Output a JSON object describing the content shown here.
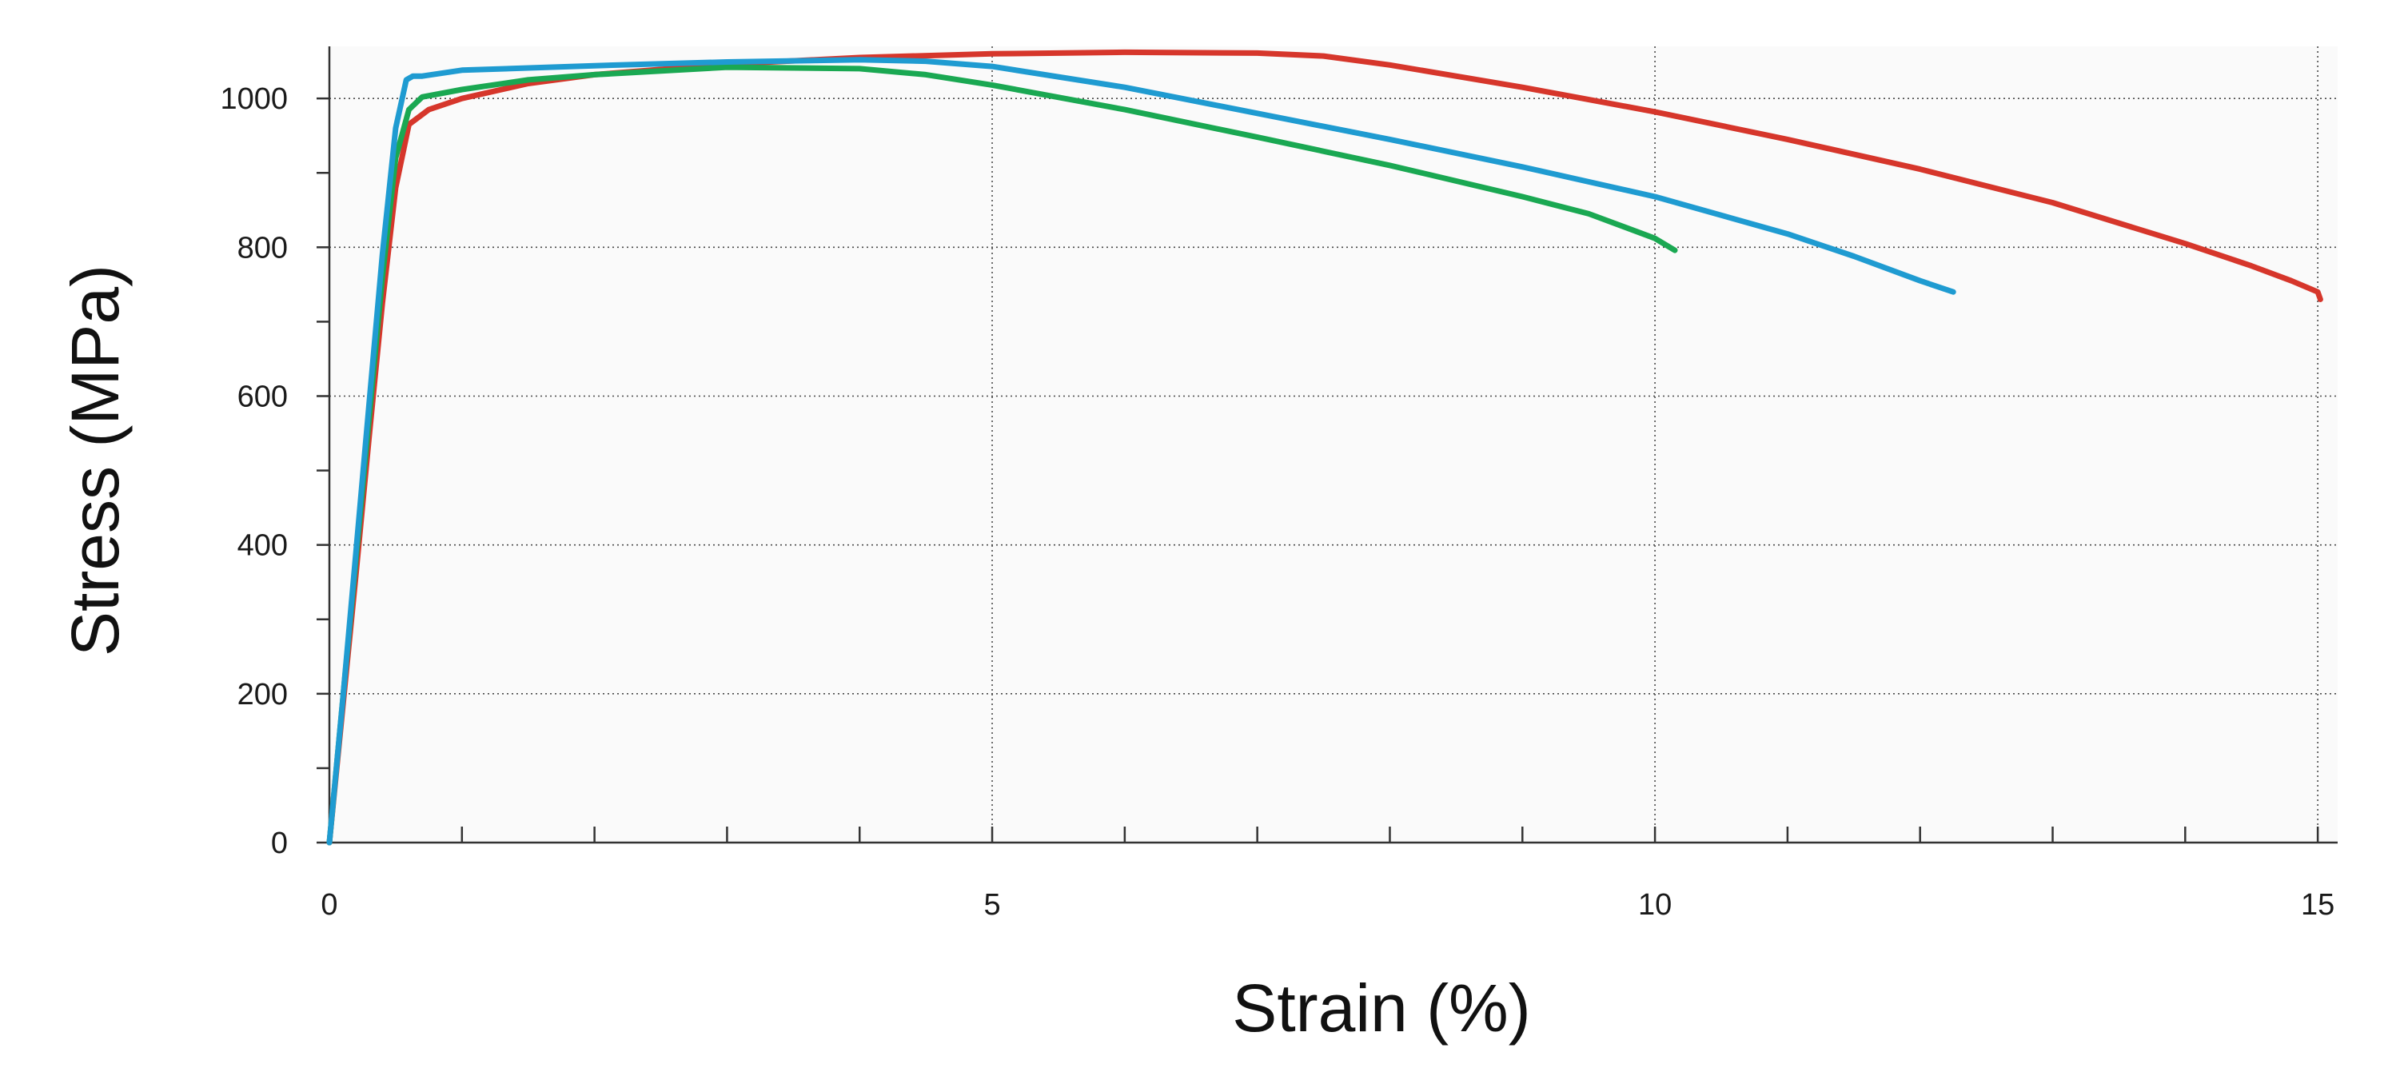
{
  "chart_data": {
    "type": "line",
    "title": "",
    "xlabel": "Strain (%)",
    "ylabel": "Stress (MPa)",
    "xlim": [
      0,
      15.15
    ],
    "ylim": [
      0,
      1070
    ],
    "x_ticks": [
      0,
      5,
      10,
      15
    ],
    "x_minor_ticks": [
      1,
      2,
      3,
      4,
      6,
      7,
      8,
      9,
      11,
      12,
      13,
      14
    ],
    "y_ticks": [
      0,
      200,
      400,
      600,
      800,
      1000
    ],
    "y_minor_ticks": [
      100,
      300,
      500,
      700,
      900
    ],
    "x_tick_labels": [
      "0",
      "5",
      "10",
      "15"
    ],
    "y_tick_labels": [
      "0",
      "200",
      "400",
      "600",
      "800",
      "1000"
    ],
    "grid": true,
    "legend": "none",
    "series": [
      {
        "color": "#d6362b",
        "x": [
          0,
          0.1,
          0.2,
          0.3,
          0.4,
          0.5,
          0.6,
          0.75,
          1,
          1.5,
          2,
          3,
          4,
          5,
          6,
          7,
          7.5,
          8,
          9,
          10,
          11,
          12,
          13,
          14,
          14.5,
          14.8,
          15,
          15.02
        ],
        "y": [
          0,
          180,
          360,
          545,
          725,
          880,
          965,
          985,
          1000,
          1020,
          1032,
          1046,
          1055,
          1060,
          1062,
          1061,
          1057,
          1045,
          1015,
          982,
          945,
          905,
          860,
          805,
          775,
          755,
          740,
          730
        ]
      },
      {
        "color": "#1aa852",
        "x": [
          0,
          0.1,
          0.2,
          0.3,
          0.4,
          0.5,
          0.6,
          0.7,
          1,
          1.5,
          2,
          3,
          4,
          4.5,
          5,
          6,
          7,
          8,
          9,
          9.5,
          10,
          10.15
        ],
        "y": [
          0,
          190,
          380,
          570,
          760,
          920,
          985,
          1002,
          1012,
          1025,
          1032,
          1042,
          1040,
          1032,
          1018,
          985,
          948,
          910,
          868,
          845,
          812,
          796
        ]
      },
      {
        "color": "#1f9bd1",
        "x": [
          0,
          0.1,
          0.2,
          0.3,
          0.4,
          0.5,
          0.58,
          0.63,
          0.7,
          1,
          2,
          3,
          4,
          4.5,
          5,
          6,
          7,
          8,
          9,
          10,
          11,
          11.5,
          12,
          12.25
        ],
        "y": [
          0,
          190,
          390,
          590,
          790,
          960,
          1025,
          1030,
          1030,
          1038,
          1044,
          1049,
          1052,
          1050,
          1043,
          1015,
          980,
          945,
          908,
          868,
          818,
          788,
          755,
          740
        ]
      }
    ]
  }
}
